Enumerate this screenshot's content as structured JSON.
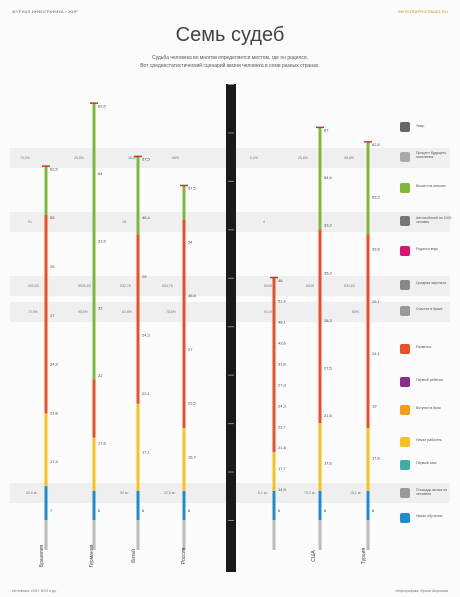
{
  "header": {
    "left": "ЖУРНАЛ ИНФОГРАФИКА • ЖИР",
    "right": "INFOGRAPHICSMAG.RU"
  },
  "title": "Семь судеб",
  "subtitle": [
    "Судьба человека во многом определяется местом, где он родился.",
    "Вот среднестатистический сценарий жизни человека в семи разных странах."
  ],
  "row_labels": [
    "Умер",
    "Процент будущего населения",
    "Вышел на пенсию",
    "Автомобилей на 1000 человек",
    "Родился внук",
    "Средняя зарплата",
    "Счастье в браке",
    "Развелся",
    "Первый ребенок",
    "Вступил в брак",
    "Начал работать",
    "Первый секс",
    "Площадь жилья на человека",
    "Начал обучение"
  ],
  "countries": [
    "Бразилия",
    "Германия",
    "Китай",
    "Россия",
    "",
    "США",
    "Турция"
  ],
  "cells": {
    "population": [
      "70,2%",
      "25,5%",
      "48,8%",
      "68%",
      "6,0%",
      "25,6%",
      "98,6%"
    ],
    "cars": [
      "91",
      "",
      "18",
      "",
      "4",
      "",
      ""
    ],
    "salary": [
      "900,50",
      "5005,59",
      "532,78",
      "834,78",
      "5045",
      "8045",
      "534,69"
    ],
    "happiness": [
      "72,5%",
      "95,6%",
      "61,6%",
      "78,6%",
      "94,4%",
      "",
      "85%"
    ],
    "housing": [
      "20,6 м²",
      "",
      "30 м²",
      "22,5 м²",
      "6,1 м²",
      "75,2 м²",
      "18,1 м²"
    ]
  },
  "chart_data": {
    "type": "bar",
    "title": "Семь судеб",
    "ylabel": "возраст",
    "ylim": [
      0,
      90
    ],
    "segment_colors": [
      "#1f8bd0",
      "#f7c21d",
      "#e8502a",
      "#7fb93b"
    ],
    "series": [
      {
        "country": "Бразилия",
        "stages": [
          7,
          22,
          63,
          73
        ],
        "labels": [
          "7",
          "17,4",
          "21,8",
          "34,3",
          "27",
          "25",
          "55",
          "62,5"
        ]
      },
      {
        "country": "Германия",
        "stages": [
          6,
          17,
          29,
          86
        ],
        "labels": [
          "6",
          "17,6",
          "22",
          "32",
          "31,5",
          "64",
          "62,5"
        ]
      },
      {
        "country": "Китай",
        "stages": [
          6,
          24,
          59,
          75
        ],
        "labels": [
          "6",
          "17,1",
          "22,1",
          "24,3",
          "25",
          "48,4",
          "57,5"
        ]
      },
      {
        "country": "Россия",
        "stages": [
          6,
          19,
          62,
          69
        ],
        "labels": [
          "6",
          "16,7",
          "23,5",
          "27",
          "36,8",
          "54",
          "57,5"
        ]
      },
      {
        "country": "",
        "stages": [
          6,
          14,
          50,
          50
        ],
        "labels": [
          "6",
          "14,9",
          "17,7",
          "21,8",
          "22,7",
          "24,3",
          "27,3",
          "31,8",
          "43,6",
          "48,1",
          "51,4",
          "48"
        ]
      },
      {
        "country": "США",
        "stages": [
          6,
          20,
          60,
          81
        ],
        "labels": [
          "6",
          "17,6",
          "21,8",
          "27,5",
          "28,3",
          "35,2",
          "33,2",
          "54,6",
          "67"
        ]
      },
      {
        "country": "Турция",
        "stages": [
          6,
          19,
          59,
          78
        ],
        "labels": [
          "6",
          "17,6",
          "19",
          "24,1",
          "26,1",
          "33,5",
          "52,2",
          "62,5"
        ]
      }
    ]
  },
  "footer": {
    "left": "Источники: ООН, ВОЗ и др.",
    "right": "Инфографика: Ирина Шорохова"
  }
}
